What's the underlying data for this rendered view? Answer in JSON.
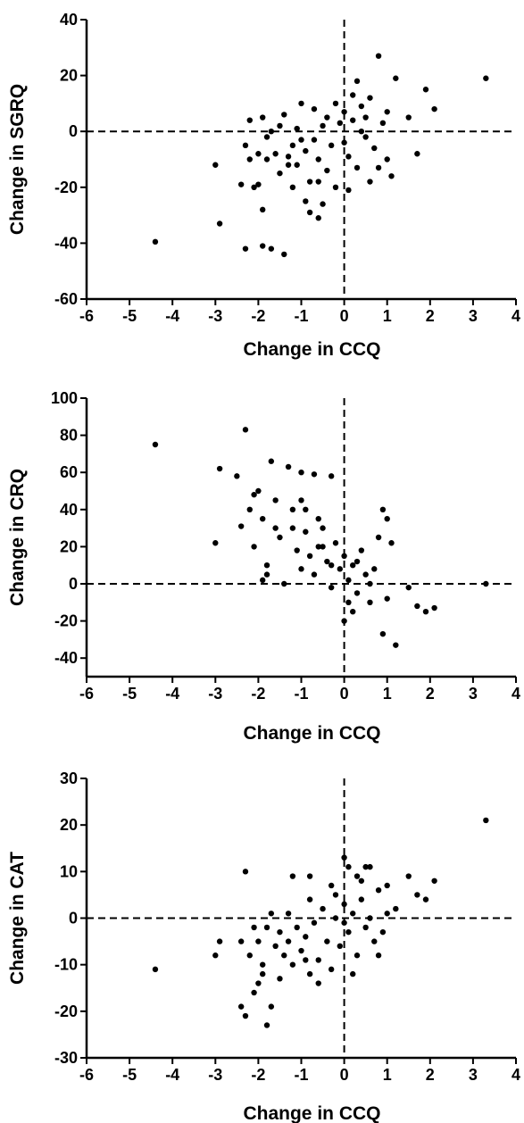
{
  "chart_data": [
    {
      "type": "scatter",
      "xlabel": "Change in CCQ",
      "ylabel": "Change in SGRQ",
      "xlim": [
        -6,
        4
      ],
      "ylim": [
        -60,
        40
      ],
      "xticks": [
        -6,
        -5,
        -4,
        -3,
        -2,
        -1,
        0,
        1,
        2,
        3,
        4
      ],
      "yticks": [
        -60,
        -40,
        -20,
        0,
        20,
        40
      ],
      "reference_lines": {
        "x": 0,
        "y": 0,
        "style": "dashed"
      },
      "grid": false,
      "legend": "none",
      "marker_color": "#000000",
      "series": [
        {
          "points": [
            [
              -4.4,
              -39.5
            ],
            [
              -3.0,
              -12
            ],
            [
              -2.9,
              -33
            ],
            [
              -2.4,
              -19
            ],
            [
              -2.3,
              -42
            ],
            [
              -2.3,
              -5
            ],
            [
              -2.2,
              -10
            ],
            [
              -2.1,
              -20
            ],
            [
              -2.0,
              -19
            ],
            [
              -1.9,
              5
            ],
            [
              -1.9,
              -28
            ],
            [
              -1.9,
              -41
            ],
            [
              -1.8,
              -10
            ],
            [
              -1.7,
              -42
            ],
            [
              -1.7,
              0
            ],
            [
              -1.6,
              -8
            ],
            [
              -1.4,
              6
            ],
            [
              -1.4,
              -44
            ],
            [
              -1.3,
              -12
            ],
            [
              -1.2,
              -20
            ],
            [
              -1.0,
              10
            ],
            [
              -0.9,
              -25
            ],
            [
              -0.8,
              -29
            ],
            [
              -0.6,
              -31
            ],
            [
              -0.5,
              -26
            ],
            [
              0.0,
              -4
            ],
            [
              0.2,
              13
            ],
            [
              0.3,
              18
            ],
            [
              0.5,
              5
            ],
            [
              0.6,
              -18
            ],
            [
              0.8,
              27
            ],
            [
              1.0,
              7
            ],
            [
              1.1,
              -16
            ],
            [
              1.2,
              19
            ],
            [
              1.5,
              5
            ],
            [
              1.7,
              -8
            ],
            [
              1.9,
              15
            ],
            [
              2.1,
              8
            ],
            [
              3.3,
              19
            ],
            [
              -2.0,
              -8
            ],
            [
              -1.8,
              -2
            ],
            [
              -1.5,
              -15
            ],
            [
              -1.2,
              -5
            ],
            [
              -1.1,
              -12
            ],
            [
              -0.9,
              -7
            ],
            [
              -0.8,
              -18
            ],
            [
              -0.7,
              -3
            ],
            [
              -0.6,
              -10
            ],
            [
              -0.5,
              2
            ],
            [
              -0.4,
              -14
            ],
            [
              -0.3,
              -5
            ],
            [
              -0.2,
              -20
            ],
            [
              -0.1,
              3
            ],
            [
              0.1,
              -9
            ],
            [
              0.2,
              4
            ],
            [
              0.3,
              -13
            ],
            [
              0.4,
              9
            ],
            [
              0.5,
              -2
            ],
            [
              0.6,
              12
            ],
            [
              0.7,
              -6
            ],
            [
              0.9,
              3
            ],
            [
              1.0,
              -10
            ],
            [
              -1.5,
              2
            ],
            [
              -1.0,
              -3
            ],
            [
              -0.4,
              5
            ],
            [
              0.0,
              7
            ],
            [
              0.4,
              0
            ],
            [
              -2.2,
              4
            ],
            [
              -1.3,
              -9
            ],
            [
              -0.7,
              8
            ],
            [
              -0.2,
              10
            ],
            [
              0.8,
              -13
            ],
            [
              0.1,
              -21
            ],
            [
              -0.6,
              -18
            ],
            [
              -1.1,
              1
            ]
          ]
        }
      ]
    },
    {
      "type": "scatter",
      "xlabel": "Change in CCQ",
      "ylabel": "Change in CRQ",
      "xlim": [
        -6,
        4
      ],
      "ylim": [
        -50,
        100
      ],
      "xticks": [
        -6,
        -5,
        -4,
        -3,
        -2,
        -1,
        0,
        1,
        2,
        3,
        4
      ],
      "yticks": [
        -40,
        -20,
        0,
        20,
        40,
        60,
        80,
        100
      ],
      "reference_lines": {
        "x": 0,
        "y": 0,
        "style": "dashed"
      },
      "grid": false,
      "legend": "none",
      "marker_color": "#000000",
      "series": [
        {
          "points": [
            [
              -4.4,
              75
            ],
            [
              -3.0,
              22
            ],
            [
              -2.9,
              62
            ],
            [
              -2.5,
              58
            ],
            [
              -2.3,
              83
            ],
            [
              -2.2,
              40
            ],
            [
              -2.0,
              50
            ],
            [
              -1.9,
              2
            ],
            [
              -1.7,
              66
            ],
            [
              -1.6,
              30
            ],
            [
              -1.3,
              63
            ],
            [
              -1.0,
              45
            ],
            [
              -0.7,
              59
            ],
            [
              -0.3,
              58
            ],
            [
              0.0,
              -20
            ],
            [
              0.2,
              -15
            ],
            [
              0.6,
              -10
            ],
            [
              0.9,
              -27
            ],
            [
              0.9,
              40
            ],
            [
              1.0,
              35
            ],
            [
              1.2,
              -33
            ],
            [
              1.5,
              -2
            ],
            [
              1.7,
              -12
            ],
            [
              1.9,
              -15
            ],
            [
              2.1,
              -13
            ],
            [
              3.3,
              0
            ],
            [
              -2.4,
              31
            ],
            [
              -2.1,
              20
            ],
            [
              -1.9,
              35
            ],
            [
              -1.8,
              10
            ],
            [
              -1.5,
              25
            ],
            [
              -1.4,
              0
            ],
            [
              -1.2,
              40
            ],
            [
              -1.1,
              18
            ],
            [
              -1.0,
              8
            ],
            [
              -0.9,
              28
            ],
            [
              -0.8,
              15
            ],
            [
              -0.7,
              5
            ],
            [
              -0.6,
              20
            ],
            [
              -0.5,
              30
            ],
            [
              -0.4,
              12
            ],
            [
              -0.3,
              -2
            ],
            [
              -0.2,
              22
            ],
            [
              -0.1,
              8
            ],
            [
              0.0,
              15
            ],
            [
              0.1,
              2
            ],
            [
              0.2,
              10
            ],
            [
              0.3,
              -5
            ],
            [
              0.4,
              18
            ],
            [
              0.5,
              5
            ],
            [
              0.6,
              0
            ],
            [
              0.7,
              8
            ],
            [
              0.8,
              25
            ],
            [
              1.0,
              -8
            ],
            [
              1.1,
              22
            ],
            [
              -1.6,
              45
            ],
            [
              -1.2,
              30
            ],
            [
              -0.9,
              40
            ],
            [
              -0.6,
              35
            ],
            [
              -0.3,
              10
            ],
            [
              0.1,
              -10
            ],
            [
              -2.1,
              48
            ],
            [
              -1.8,
              5
            ],
            [
              -1.0,
              60
            ],
            [
              -0.5,
              20
            ],
            [
              0.3,
              12
            ]
          ]
        }
      ]
    },
    {
      "type": "scatter",
      "xlabel": "Change in CCQ",
      "ylabel": "Change in CAT",
      "xlim": [
        -6,
        4
      ],
      "ylim": [
        -30,
        30
      ],
      "xticks": [
        -6,
        -5,
        -4,
        -3,
        -2,
        -1,
        0,
        1,
        2,
        3,
        4
      ],
      "yticks": [
        -30,
        -20,
        -10,
        0,
        10,
        20,
        30
      ],
      "reference_lines": {
        "x": 0,
        "y": 0,
        "style": "dashed"
      },
      "grid": false,
      "legend": "none",
      "marker_color": "#000000",
      "series": [
        {
          "points": [
            [
              -4.4,
              -11
            ],
            [
              -3.0,
              -8
            ],
            [
              -2.9,
              -5
            ],
            [
              -2.4,
              -19
            ],
            [
              -2.3,
              -21
            ],
            [
              -2.3,
              10
            ],
            [
              -2.1,
              -16
            ],
            [
              -2.0,
              -14
            ],
            [
              -1.9,
              -12
            ],
            [
              -1.8,
              -23
            ],
            [
              -1.7,
              -19
            ],
            [
              -1.2,
              9
            ],
            [
              -0.8,
              9
            ],
            [
              -0.3,
              7
            ],
            [
              0.0,
              13
            ],
            [
              0.1,
              11
            ],
            [
              0.3,
              9
            ],
            [
              0.5,
              11
            ],
            [
              0.6,
              11
            ],
            [
              0.8,
              -8
            ],
            [
              1.0,
              7
            ],
            [
              1.2,
              2
            ],
            [
              1.5,
              9
            ],
            [
              1.7,
              5
            ],
            [
              1.9,
              4
            ],
            [
              2.1,
              8
            ],
            [
              3.3,
              21
            ],
            [
              -2.4,
              -5
            ],
            [
              -2.2,
              -8
            ],
            [
              -2.0,
              -5
            ],
            [
              -1.9,
              -10
            ],
            [
              -1.8,
              -2
            ],
            [
              -1.7,
              1
            ],
            [
              -1.6,
              -6
            ],
            [
              -1.5,
              -3
            ],
            [
              -1.4,
              -8
            ],
            [
              -1.3,
              -5
            ],
            [
              -1.2,
              -10
            ],
            [
              -1.1,
              -2
            ],
            [
              -1.0,
              -7
            ],
            [
              -0.9,
              -4
            ],
            [
              -0.8,
              -12
            ],
            [
              -0.7,
              -1
            ],
            [
              -0.6,
              -9
            ],
            [
              -0.5,
              2
            ],
            [
              -0.4,
              -5
            ],
            [
              -0.3,
              -11
            ],
            [
              -0.2,
              0
            ],
            [
              -0.1,
              -6
            ],
            [
              0.0,
              3
            ],
            [
              0.1,
              -3
            ],
            [
              0.2,
              1
            ],
            [
              0.3,
              -8
            ],
            [
              0.4,
              4
            ],
            [
              0.5,
              -2
            ],
            [
              0.6,
              0
            ],
            [
              0.7,
              -5
            ],
            [
              0.8,
              6
            ],
            [
              0.9,
              -3
            ],
            [
              1.0,
              1
            ],
            [
              -1.5,
              -13
            ],
            [
              -1.3,
              1
            ],
            [
              -0.9,
              -9
            ],
            [
              -0.6,
              -14
            ],
            [
              -0.2,
              5
            ],
            [
              0.2,
              -12
            ],
            [
              0.4,
              8
            ],
            [
              -0.8,
              4
            ],
            [
              0.0,
              -1
            ],
            [
              -2.1,
              -2
            ]
          ]
        }
      ]
    }
  ]
}
